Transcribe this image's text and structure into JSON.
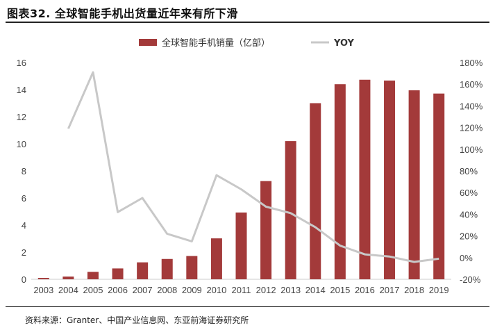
{
  "figure": {
    "title": "图表32. 全球智能手机出货量近年来有所下滑",
    "source": "资料来源：Granter、中国产业信息网、东亚前海证券研究所"
  },
  "colors": {
    "bar": "#a33a3a",
    "line": "#c8c8c8",
    "axis": "#cccccc"
  },
  "chart_data": {
    "type": "bar",
    "categories": [
      "2003",
      "2004",
      "2005",
      "2006",
      "2007",
      "2008",
      "2009",
      "2010",
      "2011",
      "2012",
      "2013",
      "2014",
      "2015",
      "2016",
      "2017",
      "2018",
      "2019"
    ],
    "series": [
      {
        "name": "全球智能手机销量（亿部）",
        "type": "bar",
        "axis": "left",
        "values": [
          0.1,
          0.2,
          0.55,
          0.8,
          1.25,
          1.5,
          1.72,
          3.02,
          4.93,
          7.25,
          10.2,
          13.0,
          14.4,
          14.73,
          14.67,
          13.95,
          13.71
        ]
      },
      {
        "name": "YOY",
        "type": "line",
        "axis": "right",
        "values": [
          null,
          1.19,
          1.71,
          0.42,
          0.55,
          0.22,
          0.15,
          0.76,
          0.63,
          0.47,
          0.41,
          0.28,
          0.11,
          0.03,
          0.01,
          -0.04,
          -0.01
        ]
      }
    ],
    "y_left": {
      "min": 0,
      "max": 16,
      "step": 2,
      "ticks": [
        "0",
        "2",
        "4",
        "6",
        "8",
        "10",
        "12",
        "14",
        "16"
      ]
    },
    "y_right": {
      "min": -0.2,
      "max": 1.8,
      "step": 0.2,
      "ticks": [
        "-20%",
        "0%",
        "20%",
        "40%",
        "60%",
        "80%",
        "100%",
        "120%",
        "140%",
        "160%",
        "180%"
      ]
    },
    "legend": {
      "position": "top-center",
      "items": [
        "全球智能手机销量（亿部）",
        "YOY"
      ]
    },
    "grid": false
  }
}
